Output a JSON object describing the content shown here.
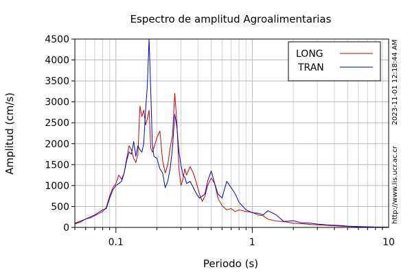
{
  "chart_data": {
    "type": "line",
    "title": "Espectro de amplitud Agroalimentarias",
    "xlabel": "Periodo (s)",
    "ylabel": "Amplitud (cm/s)",
    "xscale": "log",
    "xlim": [
      0.05,
      10
    ],
    "ylim": [
      0,
      4500
    ],
    "x_ticks": [
      0.1,
      1,
      10
    ],
    "x_tick_labels": [
      "0.1",
      "1",
      "10"
    ],
    "y_ticks": [
      0,
      500,
      1000,
      1500,
      2000,
      2500,
      3000,
      3500,
      4000,
      4500
    ],
    "y_tick_labels": [
      "0",
      "500",
      "1000",
      "1500",
      "2000",
      "2500",
      "3000",
      "3500",
      "4000",
      "4500"
    ],
    "grid": true,
    "legend_position": "top-right",
    "timestamp_label": "2023-11-01 12:18:44 AM",
    "source_label": "http://www.lis.ucr.ac.cr",
    "series": [
      {
        "name": "LONG",
        "color": "#cc0000",
        "x": [
          0.05,
          0.055,
          0.06,
          0.065,
          0.07,
          0.075,
          0.08,
          0.085,
          0.09,
          0.095,
          0.1,
          0.105,
          0.11,
          0.115,
          0.12,
          0.125,
          0.13,
          0.135,
          0.14,
          0.145,
          0.15,
          0.155,
          0.16,
          0.165,
          0.17,
          0.175,
          0.18,
          0.185,
          0.19,
          0.2,
          0.21,
          0.22,
          0.23,
          0.24,
          0.25,
          0.26,
          0.27,
          0.28,
          0.29,
          0.3,
          0.31,
          0.32,
          0.33,
          0.35,
          0.37,
          0.39,
          0.41,
          0.43,
          0.45,
          0.47,
          0.5,
          0.53,
          0.56,
          0.6,
          0.65,
          0.7,
          0.75,
          0.8,
          0.9,
          1.0,
          1.1,
          1.2,
          1.3,
          1.5,
          1.7,
          2.0,
          2.3,
          2.7,
          3.0,
          3.5,
          4.0,
          4.5,
          5.0,
          6.0,
          7.0,
          8.0,
          9.0,
          10.0
        ],
        "values": [
          80,
          130,
          200,
          230,
          280,
          330,
          380,
          480,
          750,
          950,
          1050,
          1250,
          1150,
          1300,
          1650,
          1950,
          1850,
          1650,
          1550,
          1750,
          2900,
          2650,
          2800,
          2450,
          2600,
          2800,
          1900,
          1800,
          1900,
          2150,
          2300,
          1600,
          1300,
          1500,
          1900,
          2200,
          3200,
          2500,
          1400,
          1000,
          1150,
          1400,
          1250,
          1450,
          1300,
          1050,
          800,
          620,
          750,
          1000,
          1180,
          1050,
          700,
          520,
          420,
          450,
          380,
          420,
          380,
          360,
          300,
          280,
          200,
          150,
          140,
          100,
          90,
          70,
          60,
          50,
          40,
          30,
          25,
          15,
          10,
          8,
          6,
          5
        ]
      },
      {
        "name": "TRAN",
        "color": "#0000cc",
        "x": [
          0.05,
          0.055,
          0.06,
          0.065,
          0.07,
          0.075,
          0.08,
          0.085,
          0.09,
          0.095,
          0.1,
          0.105,
          0.11,
          0.115,
          0.12,
          0.125,
          0.13,
          0.135,
          0.14,
          0.145,
          0.15,
          0.155,
          0.16,
          0.165,
          0.17,
          0.175,
          0.18,
          0.185,
          0.19,
          0.2,
          0.21,
          0.22,
          0.23,
          0.24,
          0.25,
          0.26,
          0.27,
          0.28,
          0.29,
          0.3,
          0.31,
          0.32,
          0.33,
          0.35,
          0.37,
          0.39,
          0.41,
          0.43,
          0.45,
          0.47,
          0.5,
          0.53,
          0.56,
          0.6,
          0.65,
          0.7,
          0.75,
          0.8,
          0.9,
          1.0,
          1.1,
          1.2,
          1.3,
          1.5,
          1.7,
          2.0,
          2.3,
          2.7,
          3.0,
          3.5,
          4.0,
          4.5,
          5.0,
          6.0,
          7.0,
          8.0,
          9.0,
          10.0
        ],
        "values": [
          100,
          150,
          200,
          250,
          300,
          360,
          420,
          450,
          700,
          900,
          1000,
          1050,
          1100,
          1300,
          1600,
          1800,
          1750,
          2050,
          1700,
          1950,
          1850,
          1800,
          2000,
          2800,
          3400,
          4500,
          3300,
          2000,
          1700,
          1650,
          1400,
          1300,
          950,
          1100,
          1400,
          1900,
          2700,
          2400,
          1800,
          1500,
          1250,
          1200,
          1050,
          1100,
          950,
          800,
          700,
          750,
          800,
          1100,
          1350,
          1050,
          800,
          700,
          1100,
          950,
          800,
          600,
          420,
          350,
          340,
          300,
          400,
          300,
          140,
          160,
          110,
          100,
          80,
          60,
          50,
          45,
          30,
          20,
          15,
          10,
          8,
          5
        ]
      }
    ]
  }
}
